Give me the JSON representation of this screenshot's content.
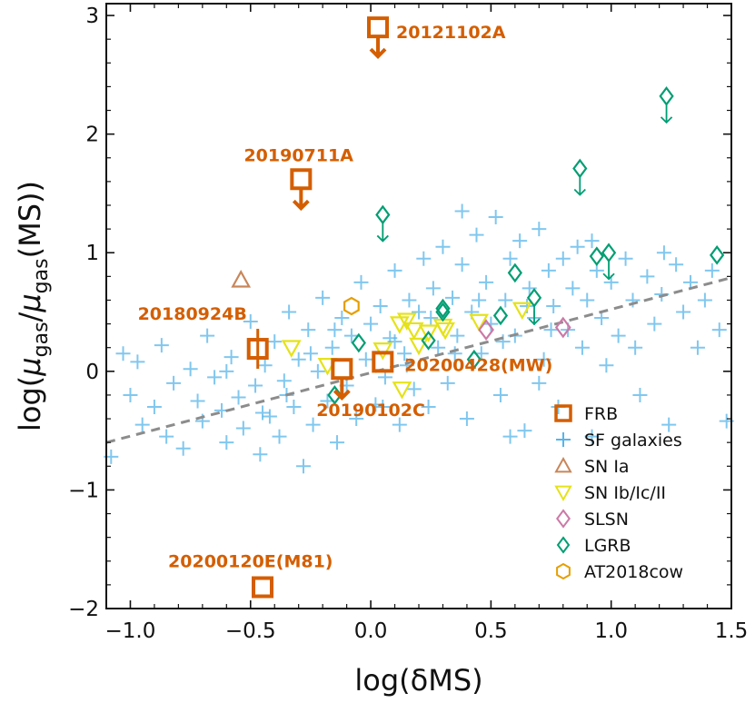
{
  "colors": {
    "frb": "#D45E00",
    "sf": "#56B4E9",
    "sn_ia": "#C8865A",
    "sn_cc": "#E5E21A",
    "slsn": "#CC79A7",
    "lgrb": "#009E73",
    "cow": "#E69F00",
    "fit": "#8c8c8c"
  },
  "chart_data": {
    "type": "scatter",
    "xlabel": "log(δMS)",
    "ylabel": "log(μgas/μgas(MS))",
    "ylabel_parts": {
      "pre": "log(",
      "mu1": "μ",
      "sub1": "gas",
      "slash": "/",
      "mu2": "μ",
      "sub2": "gas",
      "post": "(MS))"
    },
    "xlim": [
      -1.1,
      1.5
    ],
    "ylim": [
      -2.0,
      3.1
    ],
    "xticks": [
      "−1.0",
      "−0.5",
      "0.0",
      "0.5",
      "1.0",
      "1.5"
    ],
    "xtick_values": [
      -1.0,
      -0.5,
      0.0,
      0.5,
      1.0,
      1.5
    ],
    "yticks": [
      "−2",
      "−1",
      "0",
      "1",
      "2",
      "3"
    ],
    "ytick_values": [
      -2,
      -1,
      0,
      1,
      2,
      3
    ],
    "fit_line": {
      "x": [
        -1.1,
        1.5
      ],
      "y": [
        -0.6,
        0.79
      ]
    },
    "legend": {
      "position": "lower-right",
      "entries": [
        "FRB",
        "SF galaxies",
        "SN Ia",
        "SN Ib/Ic/II",
        "SLSN",
        "LGRB",
        "AT2018cow"
      ]
    },
    "series": [
      {
        "name": "FRB",
        "marker": "square",
        "points": [
          {
            "x": 0.03,
            "y": 2.9,
            "upper_limit": true,
            "label": "20121102A"
          },
          {
            "x": -0.29,
            "y": 1.62,
            "upper_limit": true,
            "label": "20190711A"
          },
          {
            "x": -0.47,
            "y": 0.19,
            "error_bar": true,
            "label": "20180924B"
          },
          {
            "x": -0.12,
            "y": 0.02,
            "upper_limit": true,
            "label": "20190102C"
          },
          {
            "x": 0.05,
            "y": 0.08,
            "label": "20200428(MW)"
          },
          {
            "x": -0.45,
            "y": -1.82,
            "label": "20200120E(M81)"
          }
        ]
      },
      {
        "name": "SN Ia",
        "marker": "triangle-up",
        "points": [
          {
            "x": -0.54,
            "y": 0.77
          }
        ]
      },
      {
        "name": "SN Ib/Ic/II",
        "marker": "triangle-down",
        "points": [
          {
            "x": -0.33,
            "y": 0.2
          },
          {
            "x": -0.18,
            "y": 0.05
          },
          {
            "x": 0.05,
            "y": 0.18
          },
          {
            "x": 0.12,
            "y": 0.4
          },
          {
            "x": 0.15,
            "y": 0.43
          },
          {
            "x": 0.18,
            "y": 0.35
          },
          {
            "x": 0.2,
            "y": 0.22
          },
          {
            "x": 0.13,
            "y": -0.15
          },
          {
            "x": 0.24,
            "y": 0.33
          },
          {
            "x": 0.3,
            "y": 0.38
          },
          {
            "x": 0.31,
            "y": 0.35
          },
          {
            "x": 0.45,
            "y": 0.42
          },
          {
            "x": 0.63,
            "y": 0.52
          }
        ]
      },
      {
        "name": "SLSN",
        "marker": "diamond",
        "points": [
          {
            "x": 0.48,
            "y": 0.35
          },
          {
            "x": 0.8,
            "y": 0.37
          }
        ]
      },
      {
        "name": "LGRB",
        "marker": "diamond",
        "points": [
          {
            "x": 0.05,
            "y": 1.32,
            "upper_limit": true
          },
          {
            "x": 0.87,
            "y": 1.71,
            "upper_limit": true
          },
          {
            "x": 1.23,
            "y": 2.32,
            "upper_limit": true
          },
          {
            "x": 0.68,
            "y": 0.62,
            "upper_limit": true
          },
          {
            "x": 0.99,
            "y": 1.0,
            "upper_limit": true
          },
          {
            "x": 0.94,
            "y": 0.97
          },
          {
            "x": 1.44,
            "y": 0.98
          },
          {
            "x": 0.6,
            "y": 0.83
          },
          {
            "x": 0.3,
            "y": 0.53
          },
          {
            "x": 0.3,
            "y": 0.5
          },
          {
            "x": 0.54,
            "y": 0.47
          },
          {
            "x": 0.24,
            "y": 0.26
          },
          {
            "x": -0.05,
            "y": 0.24
          },
          {
            "x": 0.43,
            "y": 0.1
          },
          {
            "x": -0.15,
            "y": -0.2
          }
        ]
      },
      {
        "name": "AT2018cow",
        "marker": "hexagon",
        "points": [
          {
            "x": -0.08,
            "y": 0.55
          }
        ]
      },
      {
        "name": "SF galaxies",
        "marker": "plus",
        "points": [
          {
            "x": -1.08,
            "y": -0.72
          },
          {
            "x": -1.03,
            "y": 0.15
          },
          {
            "x": -1.0,
            "y": -0.2
          },
          {
            "x": -0.97,
            "y": 0.08
          },
          {
            "x": -0.95,
            "y": -0.45
          },
          {
            "x": -0.9,
            "y": -0.3
          },
          {
            "x": -0.87,
            "y": 0.22
          },
          {
            "x": -0.85,
            "y": -0.55
          },
          {
            "x": -0.82,
            "y": -0.1
          },
          {
            "x": -0.78,
            "y": -0.65
          },
          {
            "x": -0.75,
            "y": 0.02
          },
          {
            "x": -0.72,
            "y": -0.25
          },
          {
            "x": -0.7,
            "y": -0.42
          },
          {
            "x": -0.68,
            "y": 0.3
          },
          {
            "x": -0.65,
            "y": -0.05
          },
          {
            "x": -0.62,
            "y": -0.33
          },
          {
            "x": -0.6,
            "y": -0.6
          },
          {
            "x": -0.58,
            "y": 0.12
          },
          {
            "x": -0.55,
            "y": -0.22
          },
          {
            "x": -0.53,
            "y": -0.48
          },
          {
            "x": -0.5,
            "y": 0.42
          },
          {
            "x": -0.48,
            "y": -0.12
          },
          {
            "x": -0.46,
            "y": -0.7
          },
          {
            "x": -0.44,
            "y": 0.05
          },
          {
            "x": -0.42,
            "y": -0.38
          },
          {
            "x": -0.4,
            "y": 0.25
          },
          {
            "x": -0.38,
            "y": -0.55
          },
          {
            "x": -0.36,
            "y": -0.08
          },
          {
            "x": -0.34,
            "y": 0.5
          },
          {
            "x": -0.32,
            "y": -0.3
          },
          {
            "x": -0.3,
            "y": 0.1
          },
          {
            "x": -0.28,
            "y": -0.8
          },
          {
            "x": -0.26,
            "y": 0.35
          },
          {
            "x": -0.24,
            "y": -0.45
          },
          {
            "x": -0.22,
            "y": 0.0
          },
          {
            "x": -0.2,
            "y": 0.62
          },
          {
            "x": -0.18,
            "y": -0.25
          },
          {
            "x": -0.16,
            "y": 0.2
          },
          {
            "x": -0.14,
            "y": -0.6
          },
          {
            "x": -0.12,
            "y": 0.45
          },
          {
            "x": -0.1,
            "y": -0.12
          },
          {
            "x": -0.08,
            "y": 0.3
          },
          {
            "x": -0.06,
            "y": -0.4
          },
          {
            "x": -0.04,
            "y": 0.75
          },
          {
            "x": -0.02,
            "y": 0.1
          },
          {
            "x": 0.0,
            "y": 0.4
          },
          {
            "x": 0.02,
            "y": -0.28
          },
          {
            "x": 0.04,
            "y": 0.55
          },
          {
            "x": 0.06,
            "y": -0.05
          },
          {
            "x": 0.08,
            "y": 0.28
          },
          {
            "x": 0.1,
            "y": 0.85
          },
          {
            "x": 0.12,
            "y": -0.45
          },
          {
            "x": 0.14,
            "y": 0.15
          },
          {
            "x": 0.16,
            "y": 0.6
          },
          {
            "x": 0.18,
            "y": -0.15
          },
          {
            "x": 0.2,
            "y": 0.5
          },
          {
            "x": 0.22,
            "y": 0.95
          },
          {
            "x": 0.24,
            "y": -0.3
          },
          {
            "x": 0.26,
            "y": 0.7
          },
          {
            "x": 0.28,
            "y": 0.2
          },
          {
            "x": 0.3,
            "y": 1.05
          },
          {
            "x": 0.32,
            "y": -0.1
          },
          {
            "x": 0.34,
            "y": 0.62
          },
          {
            "x": 0.36,
            "y": 0.3
          },
          {
            "x": 0.38,
            "y": 0.9
          },
          {
            "x": 0.4,
            "y": -0.4
          },
          {
            "x": 0.42,
            "y": 0.5
          },
          {
            "x": 0.44,
            "y": 1.15
          },
          {
            "x": 0.46,
            "y": 0.15
          },
          {
            "x": 0.48,
            "y": 0.75
          },
          {
            "x": 0.5,
            "y": 0.4
          },
          {
            "x": 0.52,
            "y": 1.3
          },
          {
            "x": 0.54,
            "y": -0.2
          },
          {
            "x": 0.56,
            "y": 0.6
          },
          {
            "x": 0.58,
            "y": 0.95
          },
          {
            "x": 0.6,
            "y": 0.3
          },
          {
            "x": 0.62,
            "y": 1.1
          },
          {
            "x": 0.64,
            "y": -0.5
          },
          {
            "x": 0.66,
            "y": 0.7
          },
          {
            "x": 0.68,
            "y": 0.45
          },
          {
            "x": 0.7,
            "y": 1.2
          },
          {
            "x": 0.72,
            "y": 0.1
          },
          {
            "x": 0.74,
            "y": 0.85
          },
          {
            "x": 0.76,
            "y": 0.55
          },
          {
            "x": 0.78,
            "y": -0.3
          },
          {
            "x": 0.8,
            "y": 0.95
          },
          {
            "x": 0.82,
            "y": 0.35
          },
          {
            "x": 0.84,
            "y": 0.7
          },
          {
            "x": 0.86,
            "y": 1.05
          },
          {
            "x": 0.88,
            "y": 0.2
          },
          {
            "x": 0.9,
            "y": 0.6
          },
          {
            "x": 0.92,
            "y": -0.55
          },
          {
            "x": 0.94,
            "y": 0.85
          },
          {
            "x": 0.96,
            "y": 0.45
          },
          {
            "x": 0.98,
            "y": 0.05
          },
          {
            "x": 1.0,
            "y": 0.75
          },
          {
            "x": 1.03,
            "y": 0.3
          },
          {
            "x": 1.06,
            "y": 0.95
          },
          {
            "x": 1.09,
            "y": 0.6
          },
          {
            "x": 1.12,
            "y": -0.2
          },
          {
            "x": 1.15,
            "y": 0.8
          },
          {
            "x": 1.18,
            "y": 0.4
          },
          {
            "x": 1.21,
            "y": 0.65
          },
          {
            "x": 1.24,
            "y": -0.45
          },
          {
            "x": 1.27,
            "y": 0.9
          },
          {
            "x": 1.3,
            "y": 0.5
          },
          {
            "x": 1.33,
            "y": 0.75
          },
          {
            "x": 1.36,
            "y": 0.2
          },
          {
            "x": 1.39,
            "y": 0.6
          },
          {
            "x": 1.42,
            "y": 0.85
          },
          {
            "x": 1.45,
            "y": 0.35
          },
          {
            "x": 1.48,
            "y": -0.42
          },
          {
            "x": -0.15,
            "y": 0.35
          },
          {
            "x": 0.1,
            "y": 0.25
          },
          {
            "x": 0.25,
            "y": 0.45
          },
          {
            "x": 0.35,
            "y": 0.15
          },
          {
            "x": 0.45,
            "y": 0.6
          },
          {
            "x": 0.55,
            "y": 0.25
          },
          {
            "x": 0.65,
            "y": 0.55
          },
          {
            "x": 0.75,
            "y": 0.35
          },
          {
            "x": -0.35,
            "y": -0.2
          },
          {
            "x": -0.25,
            "y": 0.15
          },
          {
            "x": 0.05,
            "y": -0.3
          },
          {
            "x": 0.15,
            "y": 0.05
          },
          {
            "x": 0.58,
            "y": -0.55
          },
          {
            "x": 0.92,
            "y": 1.1
          },
          {
            "x": 1.22,
            "y": 1.0
          },
          {
            "x": 0.38,
            "y": 1.35
          },
          {
            "x": -0.45,
            "y": -0.35
          },
          {
            "x": -0.6,
            "y": 0.0
          },
          {
            "x": 0.7,
            "y": -0.1
          },
          {
            "x": 1.1,
            "y": 0.2
          }
        ]
      }
    ]
  }
}
